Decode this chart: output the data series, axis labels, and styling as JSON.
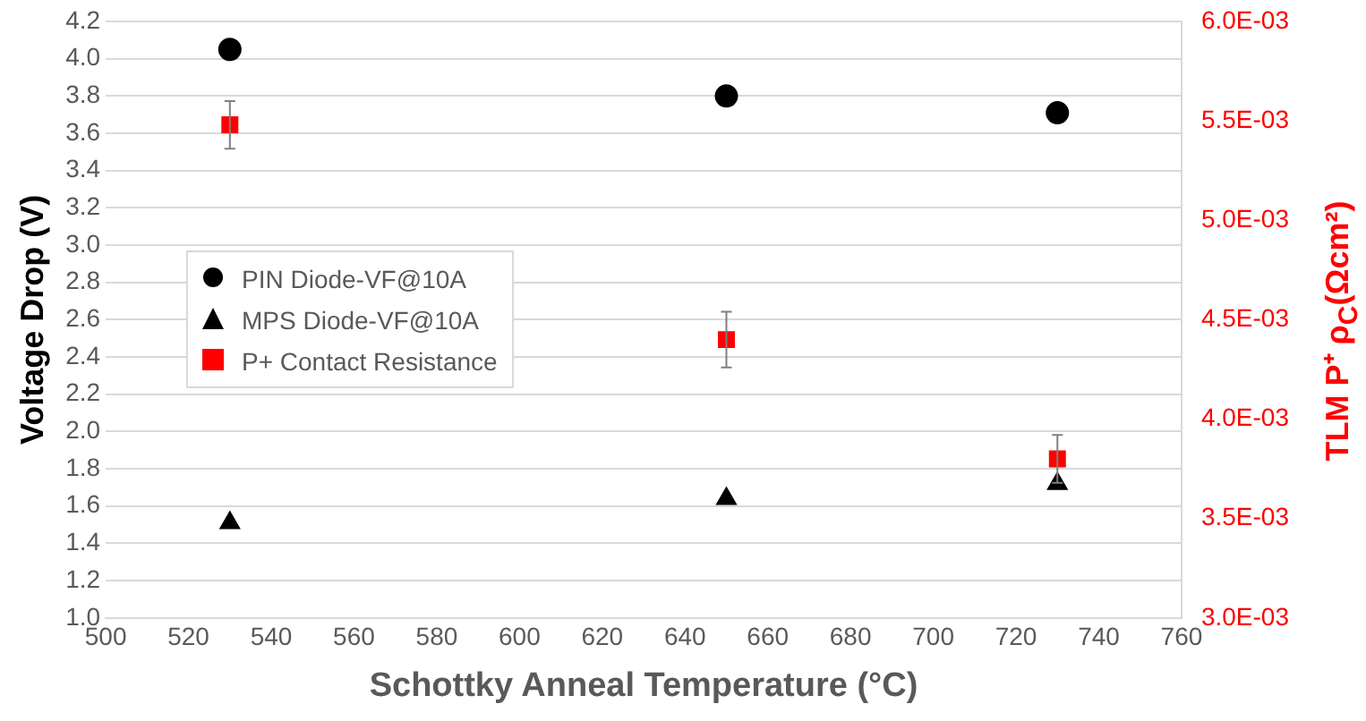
{
  "chart_data": {
    "type": "scatter",
    "xlabel": "Schottky Anneal Temperature (°C)",
    "ylabel": "Voltage Drop (V)",
    "y2label": "TLM P⁺ ρ$_{C}$(Ωcm²)",
    "xlim": [
      500,
      760
    ],
    "xticks": [
      500,
      520,
      540,
      560,
      580,
      600,
      620,
      640,
      660,
      680,
      700,
      720,
      740,
      760
    ],
    "ylim": [
      1.0,
      4.2
    ],
    "yticks": [
      "1.0",
      1.2,
      1.4,
      1.6,
      1.8,
      "2.0",
      2.2,
      2.4,
      2.6,
      2.8,
      "3.0",
      3.2,
      3.4,
      3.6,
      3.8,
      "4.0",
      4.2
    ],
    "y2lim": [
      0.003,
      0.006
    ],
    "y2ticks": [
      {
        "value": 0.003,
        "label": "3.0E-03"
      },
      {
        "value": 0.0035,
        "label": "3.5E-03"
      },
      {
        "value": 0.004,
        "label": "4.0E-03"
      },
      {
        "value": 0.0045,
        "label": "4.5E-03"
      },
      {
        "value": 0.005,
        "label": "5.0E-03"
      },
      {
        "value": 0.0055,
        "label": "5.5E-03"
      },
      {
        "value": 0.006,
        "label": "6.0E-03"
      }
    ],
    "grid": "y",
    "legend": "left",
    "series": [
      {
        "name": "PIN Diode-VF@10A",
        "color": "#000000",
        "marker": "circle",
        "x": [
          530,
          650,
          730
        ],
        "values": [
          4.05,
          3.8,
          3.71
        ]
      },
      {
        "name": "MPS Diode-VF@10A",
        "color": "#000000",
        "marker": "triangle",
        "x": [
          530,
          650,
          730
        ],
        "values": [
          1.51,
          1.64,
          1.72
        ]
      },
      {
        "name": "P+ Contact Resistance",
        "color": "#ff0000",
        "marker": "square",
        "axis": "y2",
        "x": [
          530,
          650,
          730
        ],
        "values": [
          0.00548,
          0.0044,
          0.0038
        ],
        "errors": [
          0.00012,
          0.00014,
          0.00012
        ]
      }
    ]
  }
}
